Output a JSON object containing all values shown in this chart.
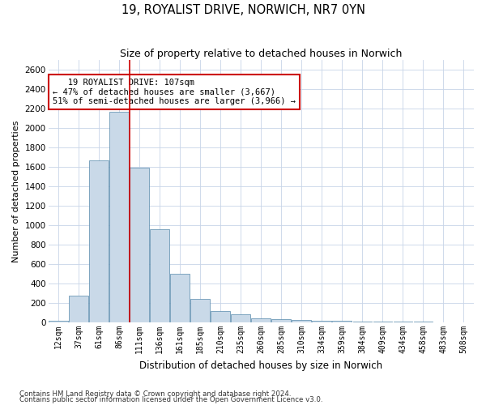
{
  "title": "19, ROYALIST DRIVE, NORWICH, NR7 0YN",
  "subtitle": "Size of property relative to detached houses in Norwich",
  "xlabel": "Distribution of detached houses by size in Norwich",
  "ylabel": "Number of detached properties",
  "footnote1": "Contains HM Land Registry data © Crown copyright and database right 2024.",
  "footnote2": "Contains public sector information licensed under the Open Government Licence v3.0.",
  "annotation_line1": "   19 ROYALIST DRIVE: 107sqm",
  "annotation_line2": "← 47% of detached houses are smaller (3,667)",
  "annotation_line3": "51% of semi-detached houses are larger (3,966) →",
  "bar_color": "#c9d9e8",
  "bar_edge_color": "#5588aa",
  "vline_color": "#cc0000",
  "annotation_box_color": "#cc0000",
  "grid_color": "#c8d4e8",
  "categories": [
    "12sqm",
    "37sqm",
    "61sqm",
    "86sqm",
    "111sqm",
    "136sqm",
    "161sqm",
    "185sqm",
    "210sqm",
    "235sqm",
    "260sqm",
    "285sqm",
    "310sqm",
    "334sqm",
    "359sqm",
    "384sqm",
    "409sqm",
    "434sqm",
    "458sqm",
    "483sqm",
    "508sqm"
  ],
  "values": [
    20,
    275,
    1665,
    2170,
    1590,
    960,
    500,
    245,
    115,
    88,
    40,
    38,
    22,
    20,
    18,
    12,
    10,
    8,
    8,
    5,
    5
  ],
  "ylim": [
    0,
    2700
  ],
  "yticks": [
    0,
    200,
    400,
    600,
    800,
    1000,
    1200,
    1400,
    1600,
    1800,
    2000,
    2200,
    2400,
    2600
  ],
  "vline_x": 3.5
}
